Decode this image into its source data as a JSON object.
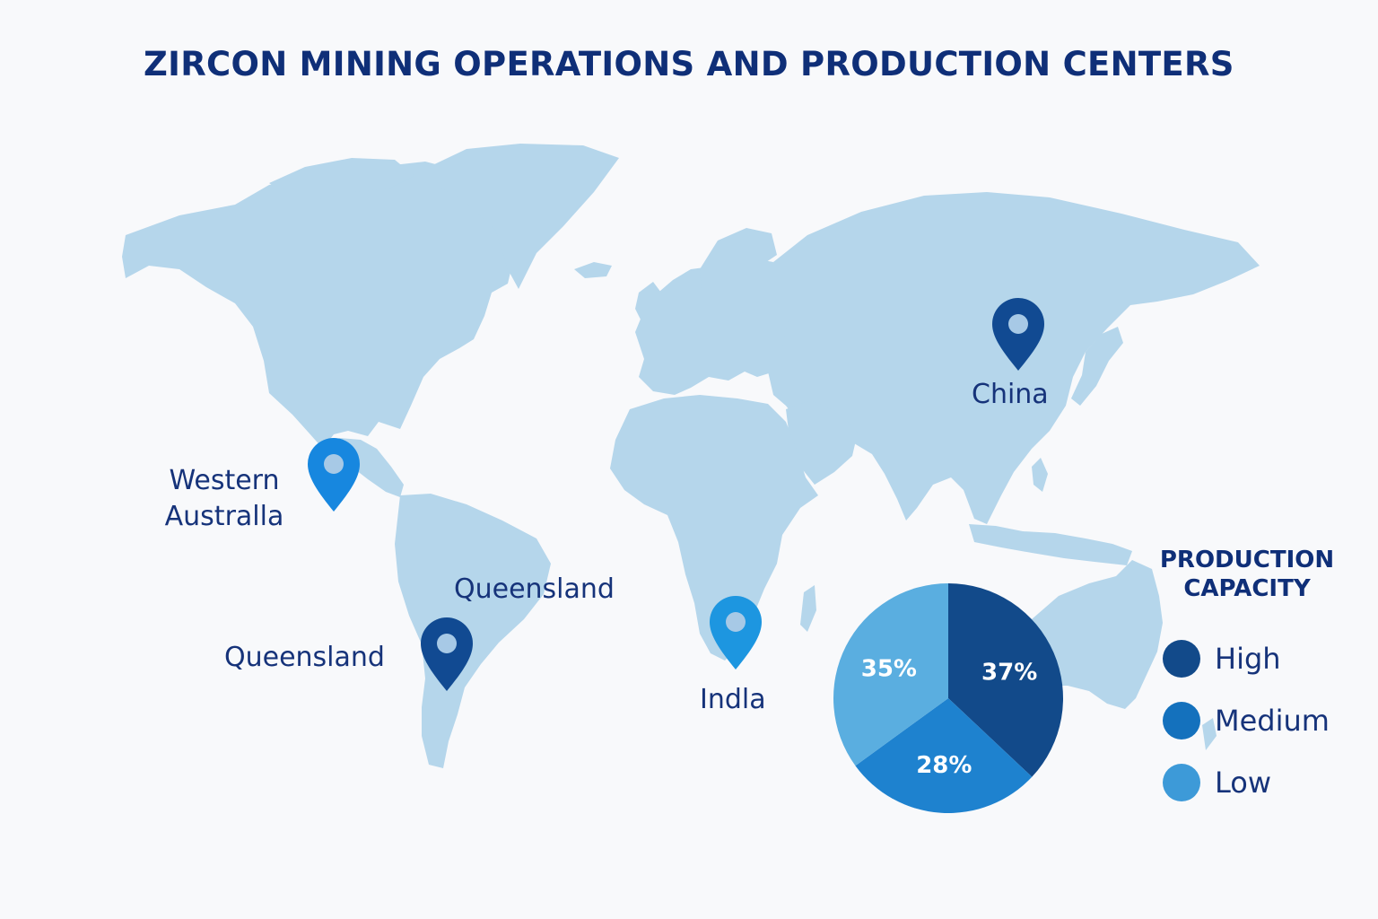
{
  "title": "ZIRCON MINING OPERATIONS AND PRODUCTION CENTERS",
  "map": {
    "markers": [
      {
        "id": "china",
        "label": "China",
        "color": "#114a92",
        "icon": "map-pin-icon"
      },
      {
        "id": "western-australia",
        "label": "Western Australla",
        "label_lines": [
          "Western",
          "Australla"
        ],
        "color": "#1787df",
        "icon": "map-pin-icon"
      },
      {
        "id": "queensland",
        "label": "Queensland",
        "color": "#114a92",
        "icon": "map-pin-icon"
      },
      {
        "id": "india",
        "label": "Indla",
        "color": "#1d96e0",
        "icon": "map-pin-icon"
      }
    ],
    "extra_labels": [
      "Queensland"
    ]
  },
  "legend": {
    "title_lines": [
      "PRODUCTION",
      "CAPACITY"
    ],
    "items": [
      {
        "label": "High",
        "color": "#124a8a"
      },
      {
        "label": "Medium",
        "color": "#1471bd"
      },
      {
        "label": "Low",
        "color": "#3d9ad8"
      }
    ]
  },
  "chart_data": {
    "type": "pie",
    "categories": [
      "High",
      "Medium",
      "Low"
    ],
    "values": [
      37,
      28,
      35
    ],
    "labels": [
      "37%",
      "28%",
      "35%"
    ],
    "colors": [
      "#124a8a",
      "#1e82cf",
      "#5aaee0"
    ]
  }
}
